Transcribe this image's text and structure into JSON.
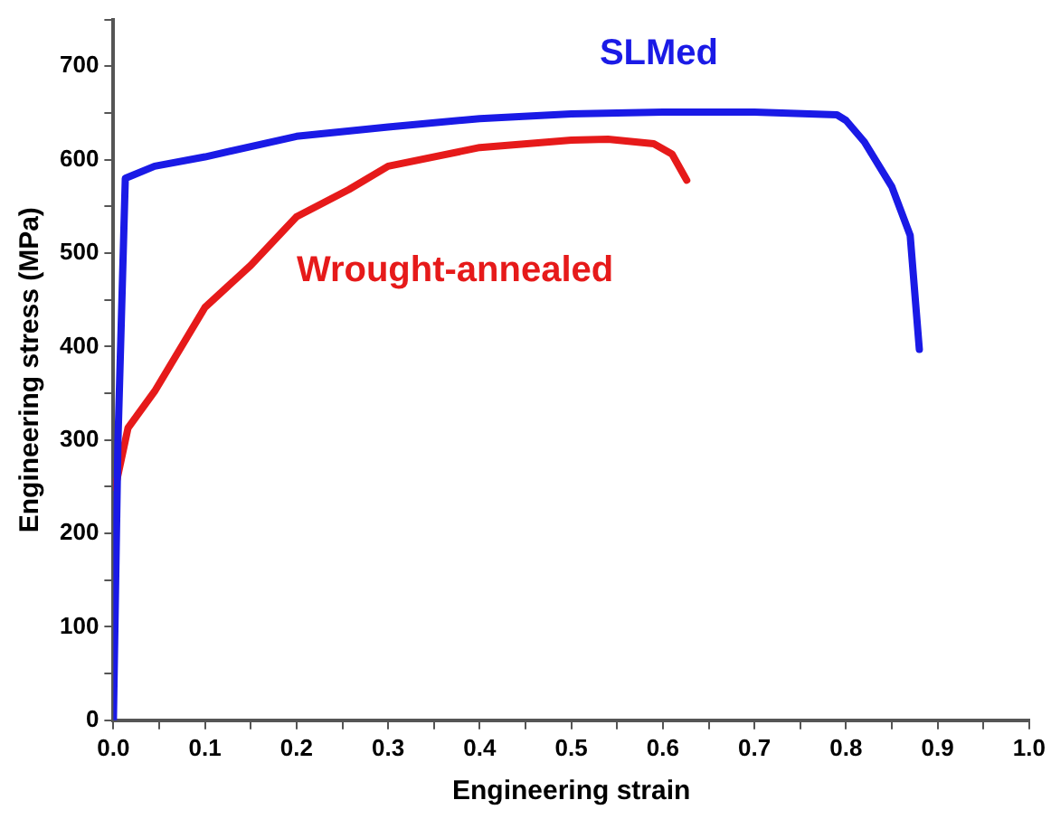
{
  "chart_data": {
    "type": "line",
    "xlabel": "Engineering strain",
    "ylabel": "Engineering stress (MPa)",
    "xlim": [
      0,
      1
    ],
    "ylim": [
      0,
      750
    ],
    "xticks": [
      {
        "value": 0,
        "label": "0.0"
      },
      {
        "value": 0.05,
        "label": null
      },
      {
        "value": 0.1,
        "label": "0.1"
      },
      {
        "value": 0.15,
        "label": null
      },
      {
        "value": 0.2,
        "label": "0.2"
      },
      {
        "value": 0.25,
        "label": null
      },
      {
        "value": 0.3,
        "label": "0.3"
      },
      {
        "value": 0.35,
        "label": null
      },
      {
        "value": 0.4,
        "label": "0.4"
      },
      {
        "value": 0.45,
        "label": null
      },
      {
        "value": 0.5,
        "label": "0.5"
      },
      {
        "value": 0.55,
        "label": null
      },
      {
        "value": 0.6,
        "label": "0.6"
      },
      {
        "value": 0.65,
        "label": null
      },
      {
        "value": 0.7,
        "label": "0.7"
      },
      {
        "value": 0.75,
        "label": null
      },
      {
        "value": 0.8,
        "label": "0.8"
      },
      {
        "value": 0.85,
        "label": null
      },
      {
        "value": 0.9,
        "label": "0.9"
      },
      {
        "value": 0.95,
        "label": null
      },
      {
        "value": 1,
        "label": "1.0"
      }
    ],
    "yticks": [
      0,
      {
        "value": 50,
        "label": null
      },
      100,
      {
        "value": 150,
        "label": null
      },
      200,
      {
        "value": 250,
        "label": null
      },
      300,
      {
        "value": 350,
        "label": null
      },
      400,
      {
        "value": 450,
        "label": null
      },
      500,
      {
        "value": 550,
        "label": null
      },
      600,
      {
        "value": 650,
        "label": null
      },
      700,
      {
        "value": 750,
        "label": null
      }
    ],
    "grid": false,
    "legend": false,
    "marker": "none",
    "line_style": "solid",
    "series": [
      {
        "name": "SLMed",
        "color": "#1a1ae6",
        "x": [
          0,
          0.005,
          0.013,
          0.045,
          0.1,
          0.2,
          0.3,
          0.4,
          0.5,
          0.6,
          0.7,
          0.79,
          0.8,
          0.82,
          0.85,
          0.87,
          0.88
        ],
        "values": [
          0,
          300,
          580,
          593,
          603,
          625,
          635,
          644,
          649,
          651,
          651,
          648,
          642,
          619,
          571,
          519,
          397
        ]
      },
      {
        "name": "Wrought-annealed",
        "color": "#e61a1a",
        "x": [
          0.002,
          0.016,
          0.045,
          0.1,
          0.15,
          0.2,
          0.257,
          0.3,
          0.4,
          0.5,
          0.54,
          0.59,
          0.61,
          0.626
        ],
        "values": [
          249,
          313,
          352,
          442,
          487,
          539,
          568,
          593,
          613,
          621,
          622,
          617,
          606,
          578
        ]
      }
    ]
  }
}
